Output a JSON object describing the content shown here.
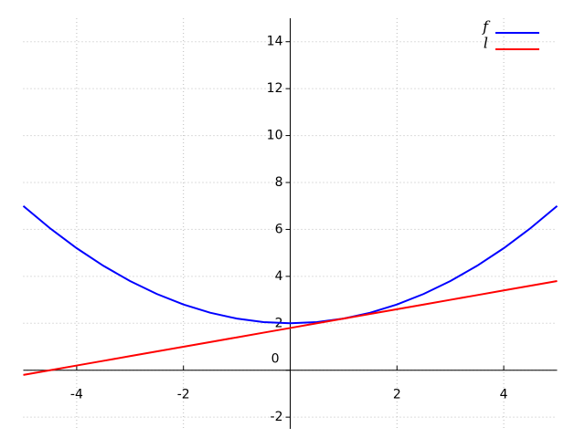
{
  "chart_data": {
    "type": "line",
    "x": [
      -5,
      -4.5,
      -4,
      -3.5,
      -3,
      -2.5,
      -2,
      -1.5,
      -1,
      -0.5,
      0,
      0.5,
      1,
      1.5,
      2,
      2.5,
      3,
      3.5,
      4,
      4.5,
      5
    ],
    "series": [
      {
        "name": "f",
        "color": "#0000ff",
        "values": [
          7,
          6.05,
          5.2,
          4.45,
          3.8,
          3.25,
          2.8,
          2.45,
          2.2,
          2.05,
          2,
          2.05,
          2.2,
          2.45,
          2.8,
          3.25,
          3.8,
          4.45,
          5.2,
          6.05,
          7
        ]
      },
      {
        "name": "l",
        "color": "#ff0000",
        "values": [
          -0.2,
          0,
          0.2,
          0.4,
          0.6,
          0.8,
          1,
          1.2,
          1.4,
          1.6,
          1.8,
          2,
          2.2,
          2.4,
          2.6,
          2.8,
          3,
          3.2,
          3.4,
          3.6,
          3.8
        ]
      }
    ],
    "xlim": [
      -5,
      5
    ],
    "ylim": [
      -2.5,
      15
    ],
    "xticks": [
      -4,
      -2,
      2,
      4
    ],
    "yticks": [
      -2,
      0,
      2,
      4,
      6,
      8,
      10,
      12,
      14
    ],
    "grid": true,
    "legend": "upper right"
  }
}
